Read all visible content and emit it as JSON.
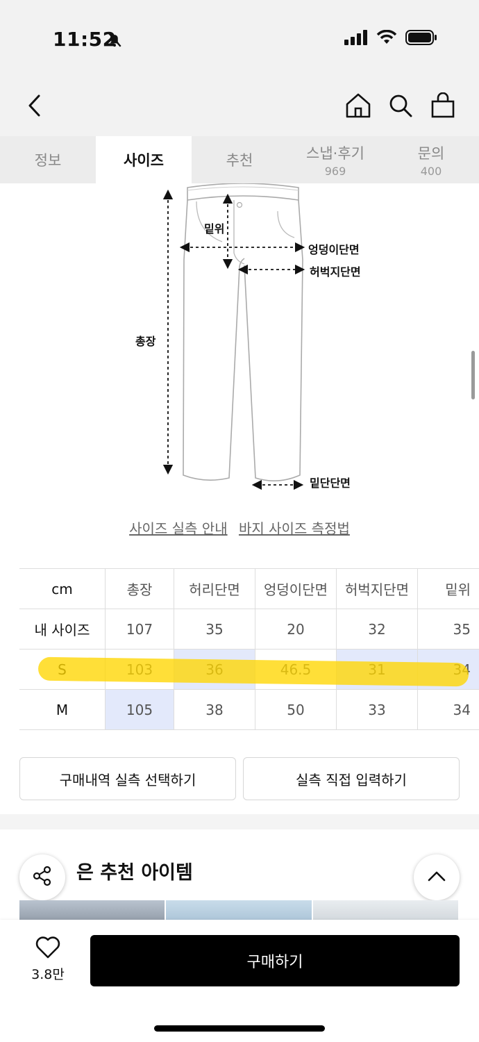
{
  "status_bar": {
    "time": "11:52"
  },
  "tabs": [
    {
      "label": "정보",
      "count": ""
    },
    {
      "label": "사이즈",
      "count": ""
    },
    {
      "label": "추천",
      "count": ""
    },
    {
      "label": "스냅·후기",
      "count": "969"
    },
    {
      "label": "문의",
      "count": "400"
    }
  ],
  "diagram": {
    "labels": {
      "rise": "밑위",
      "hip": "엉덩이단면",
      "thigh": "허벅지단면",
      "length": "총장",
      "hem": "밑단단면"
    }
  },
  "links": {
    "guide": "사이즈 실측 안내",
    "measure": "바지 사이즈 측정법"
  },
  "size_table": {
    "headers": [
      "cm",
      "총장",
      "허리단면",
      "엉덩이단면",
      "허벅지단면",
      "밑위"
    ],
    "rows": [
      {
        "label": "내 사이즈",
        "values": [
          "107",
          "35",
          "20",
          "32",
          "35"
        ]
      },
      {
        "label": "S",
        "values": [
          "103",
          "36",
          "46.5",
          "31",
          "34"
        ]
      },
      {
        "label": "M",
        "values": [
          "105",
          "38",
          "50",
          "33",
          "34"
        ]
      }
    ]
  },
  "actions": {
    "select_history": "구매내역 실측 선택하기",
    "direct_input": "실측 직접 입력하기"
  },
  "recommend": {
    "title": "은 추천 아이템"
  },
  "bottom_bar": {
    "like_count": "3.8만",
    "buy_label": "구매하기"
  },
  "colors": {
    "highlight": "#ffd600",
    "cell_highlight": "#e3e9fb",
    "buy_button": "#000000"
  }
}
